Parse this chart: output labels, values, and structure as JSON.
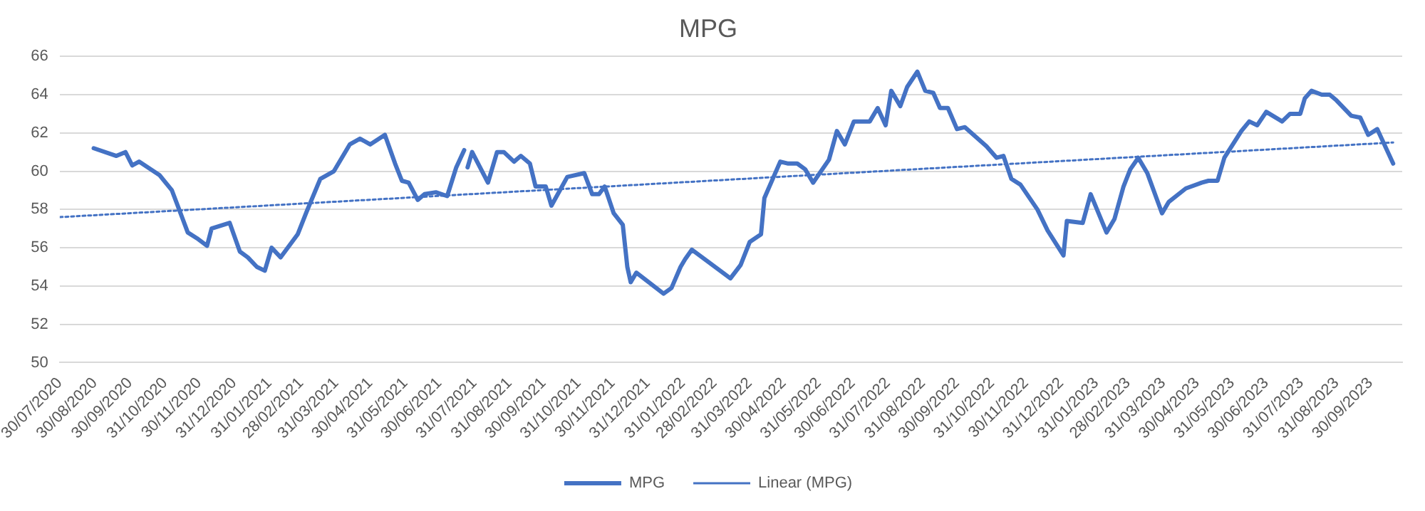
{
  "chart_data": {
    "type": "line",
    "title": "MPG",
    "xlim": [
      "2020-07-30",
      "2023-10-28"
    ],
    "xticks": [
      {
        "value": "2020-07-30",
        "label": "30/07/2020"
      },
      {
        "value": "2020-08-30",
        "label": "30/08/2020"
      },
      {
        "value": "2020-09-30",
        "label": "30/09/2020"
      },
      {
        "value": "2020-10-31",
        "label": "31/10/2020"
      },
      {
        "value": "2020-11-30",
        "label": "30/11/2020"
      },
      {
        "value": "2020-12-31",
        "label": "31/12/2020"
      },
      {
        "value": "2021-01-31",
        "label": "31/01/2021"
      },
      {
        "value": "2021-02-28",
        "label": "28/02/2021"
      },
      {
        "value": "2021-03-31",
        "label": "31/03/2021"
      },
      {
        "value": "2021-04-30",
        "label": "30/04/2021"
      },
      {
        "value": "2021-05-31",
        "label": "31/05/2021"
      },
      {
        "value": "2021-06-30",
        "label": "30/06/2021"
      },
      {
        "value": "2021-07-31",
        "label": "31/07/2021"
      },
      {
        "value": "2021-08-31",
        "label": "31/08/2021"
      },
      {
        "value": "2021-09-30",
        "label": "30/09/2021"
      },
      {
        "value": "2021-10-31",
        "label": "31/10/2021"
      },
      {
        "value": "2021-11-30",
        "label": "30/11/2021"
      },
      {
        "value": "2021-12-31",
        "label": "31/12/2021"
      },
      {
        "value": "2022-01-31",
        "label": "31/01/2022"
      },
      {
        "value": "2022-02-28",
        "label": "28/02/2022"
      },
      {
        "value": "2022-03-31",
        "label": "31/03/2022"
      },
      {
        "value": "2022-04-30",
        "label": "30/04/2022"
      },
      {
        "value": "2022-05-31",
        "label": "31/05/2022"
      },
      {
        "value": "2022-06-30",
        "label": "30/06/2022"
      },
      {
        "value": "2022-07-31",
        "label": "31/07/2022"
      },
      {
        "value": "2022-08-31",
        "label": "31/08/2022"
      },
      {
        "value": "2022-09-30",
        "label": "30/09/2022"
      },
      {
        "value": "2022-10-31",
        "label": "31/10/2022"
      },
      {
        "value": "2022-11-30",
        "label": "30/11/2022"
      },
      {
        "value": "2022-12-31",
        "label": "31/12/2022"
      },
      {
        "value": "2023-01-31",
        "label": "31/01/2023"
      },
      {
        "value": "2023-02-28",
        "label": "28/02/2023"
      },
      {
        "value": "2023-03-31",
        "label": "31/03/2023"
      },
      {
        "value": "2023-04-30",
        "label": "30/04/2023"
      },
      {
        "value": "2023-05-31",
        "label": "31/05/2023"
      },
      {
        "value": "2023-06-30",
        "label": "30/06/2023"
      },
      {
        "value": "2023-07-31",
        "label": "31/07/2023"
      },
      {
        "value": "2023-08-31",
        "label": "31/08/2023"
      },
      {
        "value": "2023-09-30",
        "label": "30/09/2023"
      }
    ],
    "ylim": [
      50,
      66
    ],
    "yticks": [
      50,
      52,
      54,
      56,
      58,
      60,
      62,
      64,
      66
    ],
    "grid": "y",
    "legend": "bottom",
    "marker": "none",
    "series": [
      {
        "name": "MPG",
        "color": "#4472c4",
        "line_style": "solid",
        "x": [
          "2020-08-29",
          "2020-09-18",
          "2020-09-26",
          "2020-10-02",
          "2020-10-08",
          "2020-10-26",
          "2020-11-06",
          "2020-11-20",
          "2020-11-28",
          "2020-12-07",
          "2020-12-11",
          "2020-12-27",
          "2021-01-05",
          "2021-01-12",
          "2021-01-20",
          "2021-01-27",
          "2021-02-02",
          "2021-02-10",
          "2021-02-25",
          "2021-03-05",
          "2021-03-17",
          "2021-03-29",
          "2021-04-12",
          "2021-04-21",
          "2021-04-30",
          "2021-05-13",
          "2021-05-22",
          "2021-05-28",
          "2021-06-03",
          "2021-06-11",
          "2021-06-17",
          "2021-06-27",
          "2021-07-07",
          "2021-07-15",
          "2021-07-22",
          "2021-07-23",
          "2021-07-25",
          "2021-07-29",
          "2021-08-12",
          "2021-08-20",
          "2021-08-26",
          "2021-09-04",
          "2021-09-10",
          "2021-09-18",
          "2021-09-23",
          "2021-10-02",
          "2021-10-07",
          "2021-10-21",
          "2021-11-05",
          "2021-11-12",
          "2021-11-18",
          "2021-11-23",
          "2021-12-01",
          "2021-12-09",
          "2021-12-13",
          "2021-12-16",
          "2021-12-21",
          "2022-01-14",
          "2022-01-21",
          "2022-01-29",
          "2022-02-02",
          "2022-02-08",
          "2022-03-14",
          "2022-03-23",
          "2022-03-31",
          "2022-04-10",
          "2022-04-13",
          "2022-04-27",
          "2022-05-04",
          "2022-05-12",
          "2022-05-19",
          "2022-05-26",
          "2022-06-09",
          "2022-06-16",
          "2022-06-23",
          "2022-07-01",
          "2022-07-15",
          "2022-07-22",
          "2022-07-29",
          "2022-08-03",
          "2022-08-11",
          "2022-08-17",
          "2022-08-26",
          "2022-09-02",
          "2022-09-09",
          "2022-09-15",
          "2022-09-22",
          "2022-09-30",
          "2022-10-07",
          "2022-10-26",
          "2022-11-04",
          "2022-11-10",
          "2022-11-17",
          "2022-11-25",
          "2022-12-10",
          "2022-12-19",
          "2023-01-02",
          "2023-01-05",
          "2023-01-19",
          "2023-01-26",
          "2023-02-09",
          "2023-02-16",
          "2023-02-24",
          "2023-03-02",
          "2023-03-09",
          "2023-03-17",
          "2023-03-30",
          "2023-04-05",
          "2023-04-20",
          "2023-05-04",
          "2023-05-10",
          "2023-05-18",
          "2023-05-24",
          "2023-06-08",
          "2023-06-15",
          "2023-06-22",
          "2023-06-30",
          "2023-07-14",
          "2023-07-21",
          "2023-07-30",
          "2023-08-03",
          "2023-08-09",
          "2023-08-18",
          "2023-08-25",
          "2023-08-31",
          "2023-09-13",
          "2023-09-21",
          "2023-09-28",
          "2023-10-06",
          "2023-10-20"
        ],
        "values": [
          61.2,
          60.8,
          61.0,
          60.3,
          60.5,
          59.8,
          59.0,
          56.8,
          56.5,
          56.1,
          57.0,
          57.3,
          55.8,
          55.5,
          55.0,
          54.8,
          56.0,
          55.5,
          56.7,
          57.9,
          59.6,
          60.0,
          61.4,
          61.7,
          61.4,
          61.9,
          60.4,
          59.5,
          59.4,
          58.5,
          58.8,
          58.9,
          58.7,
          60.2,
          61.1,
          null,
          60.2,
          61.0,
          59.4,
          61.0,
          61.0,
          60.5,
          60.8,
          60.4,
          59.2,
          59.2,
          58.2,
          59.7,
          59.9,
          58.8,
          58.8,
          59.2,
          57.8,
          57.2,
          55.0,
          54.2,
          54.7,
          53.6,
          53.9,
          55.0,
          55.4,
          55.9,
          54.4,
          55.1,
          56.3,
          56.7,
          58.6,
          60.5,
          60.4,
          60.4,
          60.1,
          59.4,
          60.6,
          62.1,
          61.4,
          62.6,
          62.6,
          63.3,
          62.4,
          64.2,
          63.4,
          64.4,
          65.2,
          64.2,
          64.1,
          63.3,
          63.3,
          62.2,
          62.3,
          61.3,
          60.7,
          60.8,
          59.6,
          59.3,
          58.0,
          56.9,
          55.6,
          57.4,
          57.3,
          58.8,
          56.8,
          57.5,
          59.2,
          60.1,
          60.7,
          59.9,
          57.8,
          58.4,
          59.1,
          59.4,
          59.5,
          59.5,
          60.7,
          62.1,
          62.6,
          62.4,
          63.1,
          62.6,
          63.0,
          63.0,
          63.8,
          64.2,
          64.0,
          64.0,
          63.7,
          62.9,
          62.8,
          61.9,
          62.2,
          60.4
        ]
      },
      {
        "name": "Linear (MPG)",
        "type": "line",
        "color": "#4472c4",
        "line_style": "dotted",
        "x": [
          "2020-07-30",
          "2023-10-20"
        ],
        "values": [
          57.6,
          61.5
        ]
      }
    ]
  }
}
